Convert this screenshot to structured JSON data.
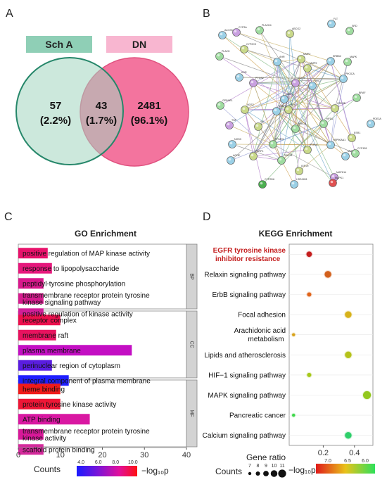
{
  "panels": {
    "a": "A",
    "b": "B",
    "c": "C",
    "d": "D"
  },
  "venn": {
    "left_label": "Sch A",
    "right_label": "DN",
    "left_color": "#8fcfb6",
    "right_color": "#f8b6d0",
    "regions": [
      {
        "count": "57",
        "pct": "(2.2%)"
      },
      {
        "count": "43",
        "pct": "(1.7%)"
      },
      {
        "count": "2481",
        "pct": "(96.1%)"
      }
    ]
  },
  "network": {
    "nodes": [
      {
        "label": "FLT",
        "c": "#9bd0e6"
      },
      {
        "label": "SRD",
        "c": "#9fdca0"
      },
      {
        "label": "ALOX5",
        "c": "#9bd0e6"
      },
      {
        "label": "CYP3A",
        "c": "#c9a0e0"
      },
      {
        "label": "PLA2G4",
        "c": "#9fdca0"
      },
      {
        "label": "ABCG2",
        "c": "#c9d98a"
      },
      {
        "label": "PLA2G",
        "c": "#9fdca0"
      },
      {
        "label": "CYP2C9",
        "c": "#c9d98a"
      },
      {
        "label": "AHR",
        "c": "#9bd0e6"
      },
      {
        "label": "MMP2",
        "c": "#c9d98a"
      },
      {
        "label": "MMP9",
        "c": "#c9d98a"
      },
      {
        "label": "ERBB2",
        "c": "#9bd0e6"
      },
      {
        "label": "MAPK",
        "c": "#9fdca0"
      },
      {
        "label": "PIK3CA",
        "c": "#9bd0e6"
      },
      {
        "label": "EGFR",
        "c": "#c9a0e0"
      },
      {
        "label": "SRC",
        "c": "#9bd0e6"
      },
      {
        "label": "BRAF",
        "c": "#9fdca0"
      },
      {
        "label": "GSK3B",
        "c": "#c9d98a"
      },
      {
        "label": "AKT1",
        "c": "#9bd0e6"
      },
      {
        "label": "PTGS2",
        "c": "#c9a0e0"
      },
      {
        "label": "GPBAR1",
        "c": "#9fdca0"
      },
      {
        "label": "NOS2",
        "c": "#c9d98a"
      },
      {
        "label": "STAT3",
        "c": "#9bd0e6"
      },
      {
        "label": "HIF1A",
        "c": "#9fdca0"
      },
      {
        "label": "PDE3A",
        "c": "#9bd0e6"
      },
      {
        "label": "TNF",
        "c": "#c9a0e0"
      },
      {
        "label": "IL6",
        "c": "#c9d98a"
      },
      {
        "label": "PRKCA",
        "c": "#9fdca0"
      },
      {
        "label": "HSP90AA1",
        "c": "#9bd0e6"
      },
      {
        "label": "ESR1",
        "c": "#c9d98a"
      },
      {
        "label": "NOS3",
        "c": "#9bd0e6"
      },
      {
        "label": "PPARG",
        "c": "#9fdca0"
      },
      {
        "label": "PTPN1",
        "c": "#c9d98a"
      },
      {
        "label": "MMP1",
        "c": "#9bd0e6"
      },
      {
        "label": "PARP1",
        "c": "#c9d98a"
      },
      {
        "label": "PRKCB",
        "c": "#9fdca0"
      },
      {
        "label": "ACHE",
        "c": "#9bd0e6"
      },
      {
        "label": "PIM1",
        "c": "#c9d98a"
      },
      {
        "label": "IGF1R",
        "c": "#c9d98a"
      },
      {
        "label": "CYP1B1",
        "c": "#9fdca0"
      },
      {
        "label": "KDR",
        "c": "#9bd0e6"
      },
      {
        "label": "MAPK14",
        "c": "#c9a0e0"
      },
      {
        "label": "CYP2D6",
        "c": "#4caf50"
      },
      {
        "label": "HSD11B1",
        "c": "#9bd0e6"
      },
      {
        "label": "MAPK1",
        "c": "#e05050"
      }
    ]
  },
  "chart_data": [
    {
      "type": "bar",
      "title": "GO Enrichment",
      "xlabel": "Counts",
      "xlim": [
        0,
        40
      ],
      "xticks": [
        "0",
        "10",
        "20",
        "30",
        "40"
      ],
      "groups": [
        "BP",
        "CC",
        "MF"
      ],
      "categories": [
        {
          "line1": "positive regulation of MAP kinase activity",
          "line2": "",
          "group": "BP",
          "count": 7,
          "nlogp": 10.0,
          "color": "#e8126b"
        },
        {
          "line1": "response to lipopolysaccharide",
          "line2": "",
          "group": "BP",
          "count": 8,
          "nlogp": 9.6,
          "color": "#e6187c"
        },
        {
          "line1": "peptidyl-tyrosine phosphorylation",
          "line2": "",
          "group": "BP",
          "count": 6,
          "nlogp": 9.2,
          "color": "#d9188c"
        },
        {
          "line1": "transmembrane receptor protein tyrosine",
          "line2": "kinase signaling pathway",
          "group": "BP",
          "count": 6,
          "nlogp": 8.9,
          "color": "#d51d8f"
        },
        {
          "line1": "positive regulation of kinase activity",
          "line2": "",
          "group": "BP",
          "count": 6,
          "nlogp": 9.0,
          "color": "#d11e97"
        },
        {
          "line1": "receptor complex",
          "line2": "",
          "group": "CC",
          "count": 10,
          "nlogp": 10.0,
          "color": "#ec0f4d"
        },
        {
          "line1": "membrane raft",
          "line2": "",
          "group": "CC",
          "count": 9,
          "nlogp": 9.6,
          "color": "#e8135f"
        },
        {
          "line1": "plasma membrane",
          "line2": "",
          "group": "CC",
          "count": 27,
          "nlogp": 7.6,
          "color": "#c30fc3"
        },
        {
          "line1": "perinuclear region of cytoplasm",
          "line2": "",
          "group": "CC",
          "count": 8,
          "nlogp": 4.6,
          "color": "#5a1de0"
        },
        {
          "line1": "integral component of plasma membrane",
          "line2": "",
          "group": "CC",
          "count": 12,
          "nlogp": 4.0,
          "color": "#1f1fff"
        },
        {
          "line1": "heme binding",
          "line2": "",
          "group": "MF",
          "count": 10,
          "nlogp": 10.4,
          "color": "#f01a1a"
        },
        {
          "line1": "protein tyrosine kinase activity",
          "line2": "",
          "group": "MF",
          "count": 10,
          "nlogp": 10.1,
          "color": "#ee1636"
        },
        {
          "line1": "ATP binding",
          "line2": "",
          "group": "MF",
          "count": 17,
          "nlogp": 8.6,
          "color": "#d918a2"
        },
        {
          "line1": "transmembrane receptor protein tyrosine",
          "line2": "kinase activity",
          "group": "MF",
          "count": 6,
          "nlogp": 9.0,
          "color": "#d81999"
        },
        {
          "line1": "scaffold protein binding",
          "line2": "",
          "group": "MF",
          "count": 6,
          "nlogp": 9.0,
          "color": "#d42a9c"
        }
      ],
      "legend": {
        "title": "Counts",
        "scale_label": "−log₁₀p",
        "ticks": [
          "4.0",
          "6.0",
          "8.0",
          "10.0"
        ],
        "range": [
          3.5,
          10.5
        ]
      }
    },
    {
      "type": "scatter",
      "title": "KEGG Enrichment",
      "xlabel": "Gene ratio",
      "xlim": [
        0.0,
        0.5
      ],
      "xticks": [
        {
          "v": 0.2,
          "t": "0.2"
        },
        {
          "v": 0.4,
          "t": "0.4"
        }
      ],
      "categories": [
        {
          "line1": "EGFR tyrosine kinase",
          "line2": "inhibitor resistance",
          "highlight": true,
          "ratio": 0.11,
          "count": 9,
          "nlogp": 7.4,
          "color": "#c41e1e"
        },
        {
          "line1": "Relaxin signaling pathway",
          "line2": "",
          "highlight": false,
          "ratio": 0.23,
          "count": 10,
          "nlogp": 7.0,
          "color": "#d2601c"
        },
        {
          "line1": "ErbB signaling pathway",
          "line2": "",
          "highlight": false,
          "ratio": 0.11,
          "count": 8,
          "nlogp": 7.0,
          "color": "#e0641a"
        },
        {
          "line1": "Focal adhesion",
          "line2": "",
          "highlight": false,
          "ratio": 0.36,
          "count": 10,
          "nlogp": 6.6,
          "color": "#d7b21a"
        },
        {
          "line1": "Arachidonic acid",
          "line2": "metabolism",
          "highlight": false,
          "ratio": 0.01,
          "count": 7,
          "nlogp": 6.6,
          "color": "#d8a21a"
        },
        {
          "line1": "Lipids and atherosclerosis",
          "line2": "",
          "highlight": false,
          "ratio": 0.36,
          "count": 10,
          "nlogp": 6.4,
          "color": "#b5c21a"
        },
        {
          "line1": "HIF−1 signaling pathway",
          "line2": "",
          "highlight": false,
          "ratio": 0.11,
          "count": 8,
          "nlogp": 6.3,
          "color": "#a6c81a"
        },
        {
          "line1": "MAPK signaling pathway",
          "line2": "",
          "highlight": false,
          "ratio": 0.48,
          "count": 11,
          "nlogp": 6.2,
          "color": "#93c81e"
        },
        {
          "line1": "Pancreatic cancer",
          "line2": "",
          "highlight": false,
          "ratio": 0.01,
          "count": 7,
          "nlogp": 6.0,
          "color": "#3ed84a"
        },
        {
          "line1": "Calcium signaling pathway",
          "line2": "",
          "highlight": false,
          "ratio": 0.36,
          "count": 10,
          "nlogp": 5.8,
          "color": "#2ecf6a"
        }
      ],
      "size_legend": {
        "title": "Counts",
        "values": [
          7,
          8,
          9,
          10,
          11
        ]
      },
      "color_legend": {
        "title": "−log₁₀p",
        "ticks": [
          "7.0",
          "6.5",
          "6.0"
        ]
      }
    }
  ]
}
